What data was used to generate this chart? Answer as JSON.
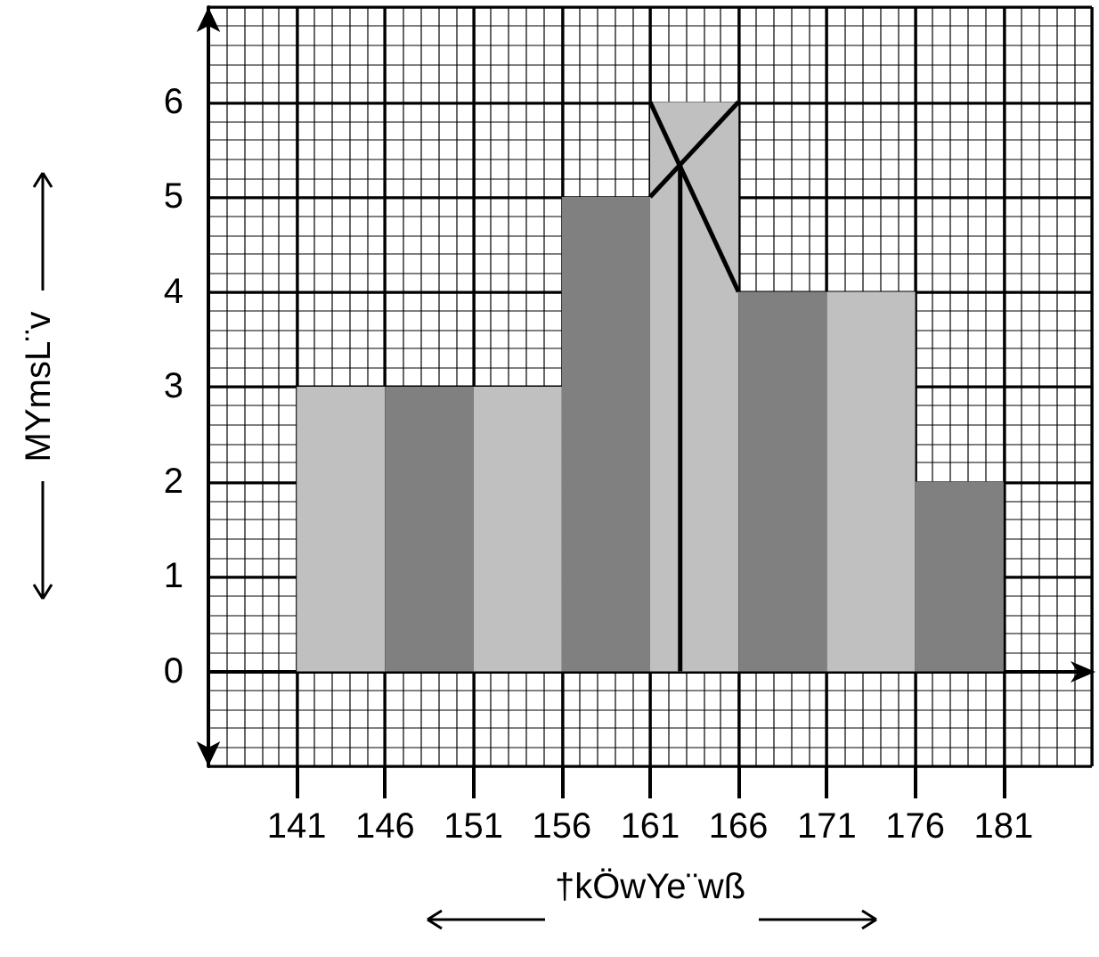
{
  "chart_data": {
    "type": "histogram",
    "xlabel": "†kÖwYe¨wß",
    "ylabel": "MYmsL¨v",
    "bins": [
      141,
      146,
      151,
      156,
      161,
      166,
      171,
      176,
      181
    ],
    "values": [
      3,
      3,
      3,
      5,
      6,
      4,
      4,
      2
    ],
    "colors": [
      "#c0c0c0",
      "#808080",
      "#c0c0c0",
      "#808080",
      "#c0c0c0",
      "#808080",
      "#c0c0c0",
      "#808080"
    ],
    "series": [
      {
        "type": "line",
        "color": "#000000",
        "x": [
          161,
          166
        ],
        "values": [
          5,
          6
        ]
      },
      {
        "type": "line",
        "color": "#000000",
        "x": [
          161,
          166
        ],
        "values": [
          6,
          4
        ]
      },
      {
        "type": "line",
        "color": "#000000",
        "x": [
          162.7,
          162.7
        ],
        "values": [
          5.33,
          0
        ]
      }
    ],
    "xlim": [
      136,
      186
    ],
    "ylim": [
      -1,
      7
    ],
    "xticks": [
      141,
      146,
      151,
      156,
      161,
      166,
      171,
      176,
      181
    ],
    "yticks": [
      0,
      1,
      2,
      3,
      4,
      5,
      6
    ],
    "grid": true
  }
}
